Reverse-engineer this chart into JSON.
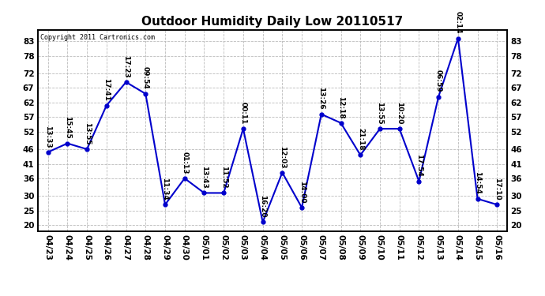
{
  "title": "Outdoor Humidity Daily Low 20110517",
  "copyright": "Copyright 2011 Cartronics.com",
  "x_labels": [
    "04/23",
    "04/24",
    "04/25",
    "04/26",
    "04/27",
    "04/28",
    "04/29",
    "04/30",
    "05/01",
    "05/02",
    "05/03",
    "05/04",
    "05/05",
    "05/06",
    "05/07",
    "05/08",
    "05/09",
    "05/10",
    "05/11",
    "05/12",
    "05/13",
    "05/14",
    "05/15",
    "05/16"
  ],
  "y_values": [
    45,
    48,
    46,
    61,
    69,
    65,
    27,
    36,
    31,
    31,
    53,
    21,
    38,
    26,
    58,
    55,
    44,
    53,
    53,
    35,
    64,
    84,
    29,
    27
  ],
  "time_labels": [
    "13:33",
    "15:45",
    "13:55",
    "17:41",
    "17:23",
    "09:54",
    "11:34",
    "01:13",
    "13:43",
    "11:52",
    "00:11",
    "16:20",
    "12:03",
    "14:00",
    "13:26",
    "12:18",
    "21:18",
    "13:55",
    "10:20",
    "17:54",
    "06:59",
    "02:14",
    "14:54",
    "17:10"
  ],
  "line_color": "#0000CC",
  "marker_color": "#0000CC",
  "background_color": "#ffffff",
  "grid_color": "#bbbbbb",
  "ylim": [
    18,
    87
  ],
  "yticks": [
    20,
    25,
    30,
    36,
    41,
    46,
    52,
    57,
    62,
    67,
    72,
    78,
    83
  ],
  "title_fontsize": 11,
  "tick_fontsize": 7.5,
  "label_fontsize": 6.5
}
